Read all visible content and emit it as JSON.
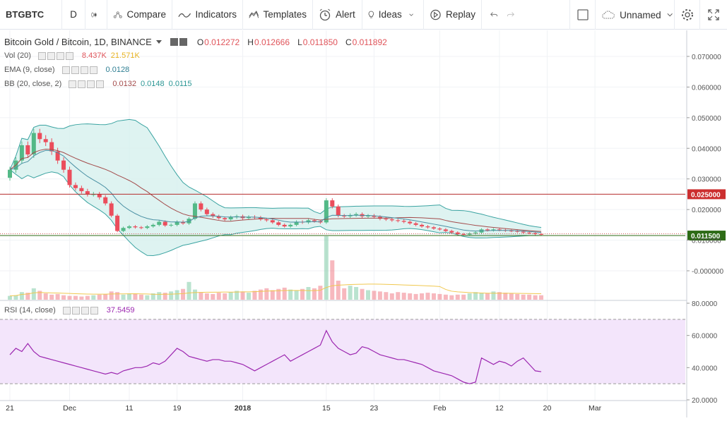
{
  "toolbar": {
    "symbol": "BTGBTC",
    "interval": "D",
    "compare_label": "Compare",
    "indicators_label": "Indicators",
    "templates_label": "Templates",
    "alert_label": "Alert",
    "ideas_label": "Ideas",
    "replay_label": "Replay",
    "layout_name": "Unnamed"
  },
  "legend": {
    "main_title": "Bitcoin Gold / Bitcoin, 1D, BINANCE",
    "ohlc": {
      "o_label": "O",
      "o": "0.012272",
      "h_label": "H",
      "h": "0.012666",
      "l_label": "L",
      "l": "0.011850",
      "c_label": "C",
      "c": "0.011892"
    },
    "vol": {
      "title": "Vol (20)",
      "v1": "8.437K",
      "v2": "21.571K"
    },
    "ema": {
      "title": "EMA (9, close)",
      "v1": "0.0128"
    },
    "bb": {
      "title": "BB (20, close, 2)",
      "v1": "0.0132",
      "v2": "0.0148",
      "v3": "0.0115"
    },
    "rsi": {
      "title": "RSI (14, close)",
      "v1": "37.5459"
    }
  },
  "price_axis": {
    "ticks": [
      "0.070000",
      "0.060000",
      "0.050000",
      "0.040000",
      "0.030000",
      "0.020000",
      "0.010000",
      "-0.000000"
    ],
    "tick_values": [
      0.07,
      0.06,
      0.05,
      0.04,
      0.03,
      0.02,
      0.01,
      0.0
    ],
    "hline_label": "0.025000",
    "hline_value": 0.025,
    "last_label": "0.011500",
    "last_value": 0.0115
  },
  "rsi_axis": {
    "ticks": [
      "80.0000",
      "60.0000",
      "40.0000",
      "20.0000"
    ],
    "tick_values": [
      80,
      60,
      40,
      20
    ],
    "upper": 70,
    "lower": 30
  },
  "time_axis": {
    "labels": [
      "21",
      "Dec",
      "11",
      "19",
      "2018",
      "15",
      "23",
      "Feb",
      "12",
      "20",
      "Mar"
    ],
    "label_days": [
      0,
      10,
      20,
      28,
      39,
      53,
      61,
      72,
      82,
      90,
      98
    ]
  },
  "colors": {
    "up": "#53b987",
    "down": "#eb4d5c",
    "ema": "#4a90a4",
    "bb_basis": "#a34b4b",
    "bb_band": "#3aa3a1",
    "bb_fill": "#d6f0ee",
    "vol_ma": "#f0c84f",
    "rsi": "#9c27b0",
    "rsi_fill": "#f3e5fb",
    "hline": "#b42c2c",
    "last": "#2d6b16"
  },
  "chart_data": {
    "type": "candlestick",
    "start_label": "21",
    "closes": [
      0.033,
      0.036,
      0.041,
      0.038,
      0.045,
      0.043,
      0.042,
      0.039,
      0.036,
      0.033,
      0.028,
      0.027,
      0.026,
      0.025,
      0.025,
      0.024,
      0.022,
      0.018,
      0.013,
      0.014,
      0.0145,
      0.0142,
      0.014,
      0.0145,
      0.015,
      0.016,
      0.0148,
      0.015,
      0.016,
      0.0155,
      0.017,
      0.022,
      0.02,
      0.0185,
      0.0178,
      0.0172,
      0.0168,
      0.0175,
      0.0178,
      0.0172,
      0.0176,
      0.0174,
      0.0168,
      0.0165,
      0.0158,
      0.015,
      0.0145,
      0.015,
      0.016,
      0.0158,
      0.0165,
      0.0162,
      0.0158,
      0.023,
      0.021,
      0.018,
      0.0178,
      0.0182,
      0.0185,
      0.0178,
      0.018,
      0.0176,
      0.017,
      0.0168,
      0.0165,
      0.0163,
      0.016,
      0.0155,
      0.015,
      0.0145,
      0.0142,
      0.0138,
      0.0135,
      0.013,
      0.0125,
      0.012,
      0.0118,
      0.0122,
      0.0125,
      0.0135,
      0.0132,
      0.0135,
      0.0133,
      0.0131,
      0.013,
      0.0128,
      0.0125,
      0.0123,
      0.012,
      0.0119
    ],
    "volumes": [
      0.06,
      0.07,
      0.12,
      0.11,
      0.18,
      0.14,
      0.1,
      0.08,
      0.09,
      0.07,
      0.06,
      0.06,
      0.05,
      0.06,
      0.07,
      0.08,
      0.09,
      0.13,
      0.12,
      0.08,
      0.1,
      0.09,
      0.08,
      0.07,
      0.1,
      0.12,
      0.11,
      0.13,
      0.15,
      0.17,
      0.28,
      0.16,
      0.12,
      0.1,
      0.09,
      0.11,
      0.1,
      0.12,
      0.14,
      0.13,
      0.11,
      0.14,
      0.16,
      0.18,
      0.15,
      0.17,
      0.19,
      0.16,
      0.15,
      0.17,
      0.2,
      0.18,
      0.22,
      1.0,
      0.62,
      0.3,
      0.18,
      0.22,
      0.2,
      0.17,
      0.15,
      0.14,
      0.13,
      0.12,
      0.1,
      0.12,
      0.11,
      0.1,
      0.09,
      0.1,
      0.11,
      0.1,
      0.09,
      0.08,
      0.07,
      0.08,
      0.08,
      0.1,
      0.12,
      0.11,
      0.1,
      0.13,
      0.12,
      0.11,
      0.1,
      0.09,
      0.08,
      0.08,
      0.07,
      0.07
    ],
    "rsi": [
      48,
      52,
      50,
      55,
      50,
      47,
      46,
      45,
      44,
      43,
      42,
      41,
      40,
      39,
      38,
      37,
      36,
      37,
      36,
      38,
      39,
      40,
      40,
      41,
      43,
      42,
      44,
      48,
      52,
      50,
      47,
      46,
      45,
      44,
      45,
      45,
      44,
      44,
      43,
      42,
      40,
      38,
      40,
      42,
      44,
      46,
      48,
      44,
      46,
      48,
      50,
      52,
      54,
      63,
      56,
      52,
      50,
      48,
      49,
      53,
      52,
      50,
      48,
      47,
      46,
      45,
      45,
      44,
      43,
      42,
      40,
      38,
      37,
      36,
      35,
      33,
      31,
      30,
      31,
      46,
      44,
      42,
      44,
      43,
      41,
      44,
      46,
      42,
      38,
      37.5
    ]
  }
}
